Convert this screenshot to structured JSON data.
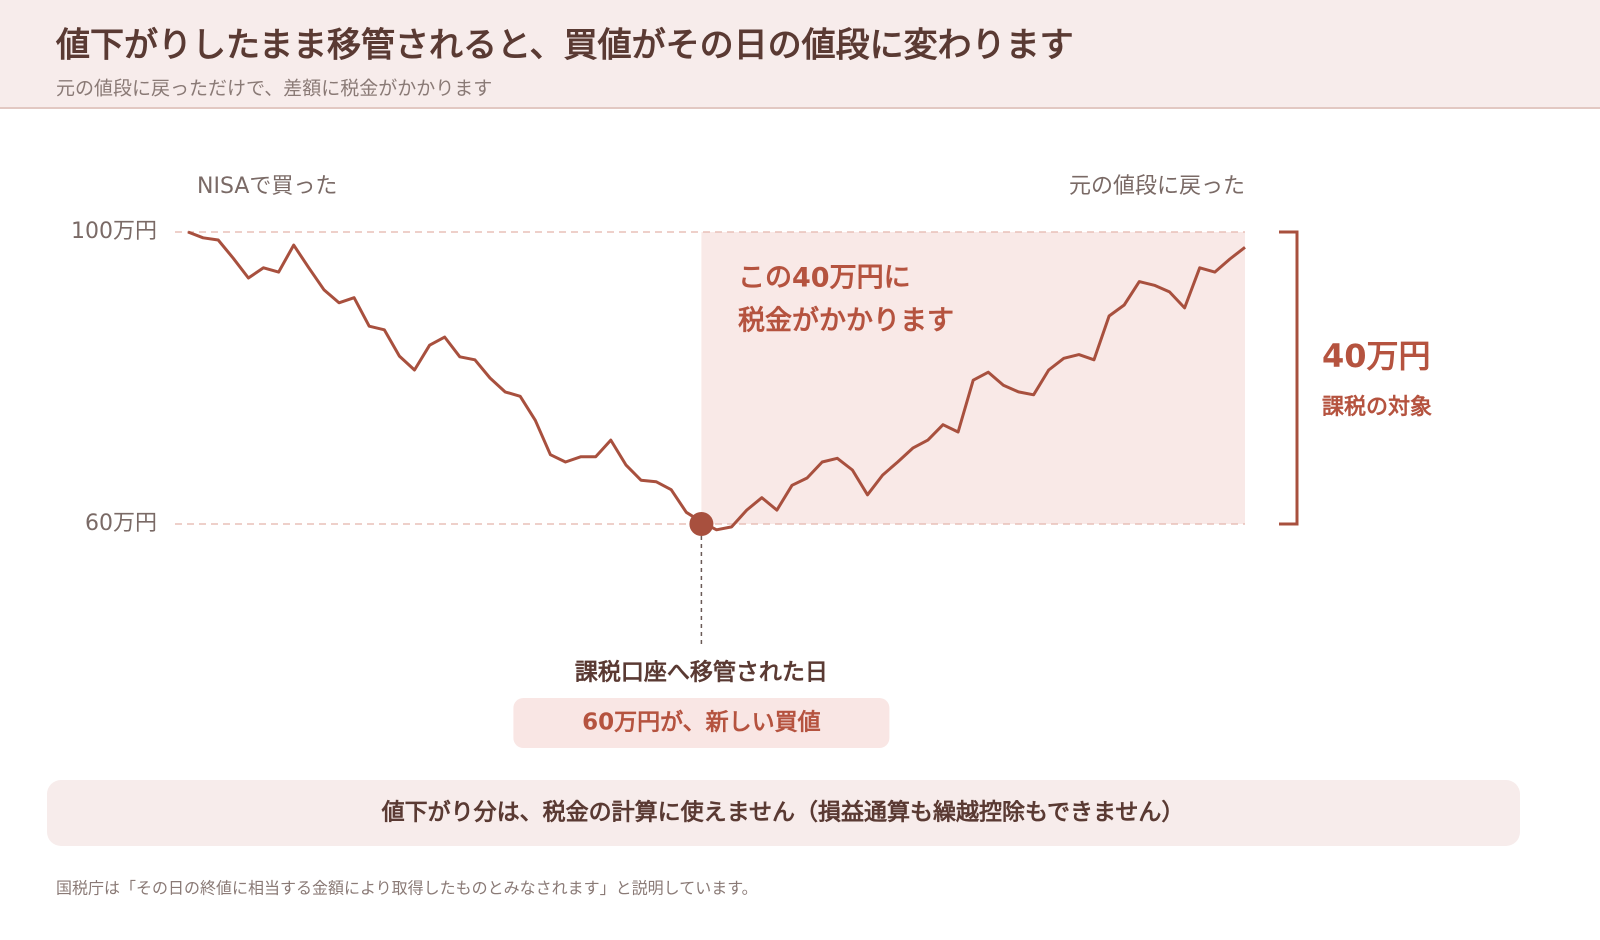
{
  "header": {
    "title": "値下がりしたまま移管されると、買値がその日の値段に変わります",
    "subtitle": "元の値段に戻っただけで、差額に税金がかかります"
  },
  "chart_data": {
    "type": "line",
    "color": "#a8503e",
    "start_label": "NISAで買った",
    "end_label": "元の値段に戻った",
    "values": [
      100,
      99.2,
      98.9,
      96.4,
      93.7,
      95.1,
      94.5,
      98.2,
      95.1,
      92.1,
      90.3,
      91.0,
      87.1,
      86.6,
      83.0,
      81.1,
      84.5,
      85.6,
      82.9,
      82.5,
      80.0,
      78.1,
      77.5,
      74.2,
      69.5,
      68.5,
      69.2,
      69.2,
      71.5,
      68.1,
      66.0,
      65.8,
      64.7,
      61.6,
      60.3,
      59.2,
      59.6,
      61.9,
      63.6,
      61.9,
      65.3,
      66.3,
      68.5,
      69.0,
      67.4,
      64.0,
      66.7,
      68.5,
      70.4,
      71.5,
      73.6,
      72.6,
      79.7,
      80.8,
      79.0,
      78.1,
      77.7,
      81.1,
      82.7,
      83.2,
      82.5,
      88.5,
      90.0,
      93.2,
      92.7,
      91.8,
      89.6,
      95.1,
      94.5,
      96.3,
      97.9
    ],
    "ylim": [
      56,
      104
    ],
    "yticks": [
      {
        "value": 100,
        "label": "100万円"
      },
      {
        "value": 60,
        "label": "60万円"
      }
    ],
    "marker": {
      "index": 34,
      "value": 60,
      "label": "課税口座へ移管された日",
      "note": "60万円が、新しい買値"
    },
    "annotation": [
      "この40万円に",
      "税金がかかります"
    ],
    "range_label": {
      "amount": "40万円",
      "caption": "課税の対象"
    }
  },
  "banner": "値下がり分は、税金の計算に使えません（損益通算も繰越控除もできません）",
  "footnote": "国税庁は「その日の終値に相当する金額により取得したものとみなされます」と説明しています。"
}
